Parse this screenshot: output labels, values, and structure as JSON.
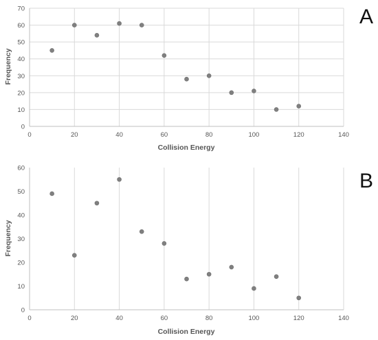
{
  "chart_data": [
    {
      "type": "scatter",
      "panel_label": "A",
      "xlabel": "Collision Energy",
      "ylabel": "Frequency",
      "xlim": [
        0,
        140
      ],
      "ylim": [
        0,
        70
      ],
      "xticks": [
        0,
        20,
        40,
        60,
        80,
        100,
        120,
        140
      ],
      "yticks": [
        0,
        10,
        20,
        30,
        40,
        50,
        60,
        70
      ],
      "grid": "vertical and horizontal",
      "legend": "none",
      "point_color": "#808080",
      "series": [
        {
          "x": [
            10,
            20,
            30,
            40,
            50,
            60,
            70,
            80,
            90,
            100,
            110,
            120
          ],
          "y": [
            45,
            60,
            54,
            61,
            60,
            42,
            28,
            30,
            20,
            21,
            10,
            12
          ]
        }
      ]
    },
    {
      "type": "scatter",
      "panel_label": "B",
      "xlabel": "Collision Energy",
      "ylabel": "Frequency",
      "xlim": [
        0,
        140
      ],
      "ylim": [
        0,
        60
      ],
      "xticks": [
        0,
        20,
        40,
        60,
        80,
        100,
        120,
        140
      ],
      "yticks": [
        0,
        10,
        20,
        30,
        40,
        50,
        60
      ],
      "grid": "vertical only",
      "legend": "none",
      "point_color": "#808080",
      "series": [
        {
          "x": [
            10,
            20,
            30,
            40,
            50,
            60,
            70,
            80,
            90,
            100,
            110,
            120
          ],
          "y": [
            49,
            23,
            45,
            55,
            33,
            28,
            13,
            15,
            18,
            9,
            14,
            5
          ]
        }
      ]
    }
  ]
}
